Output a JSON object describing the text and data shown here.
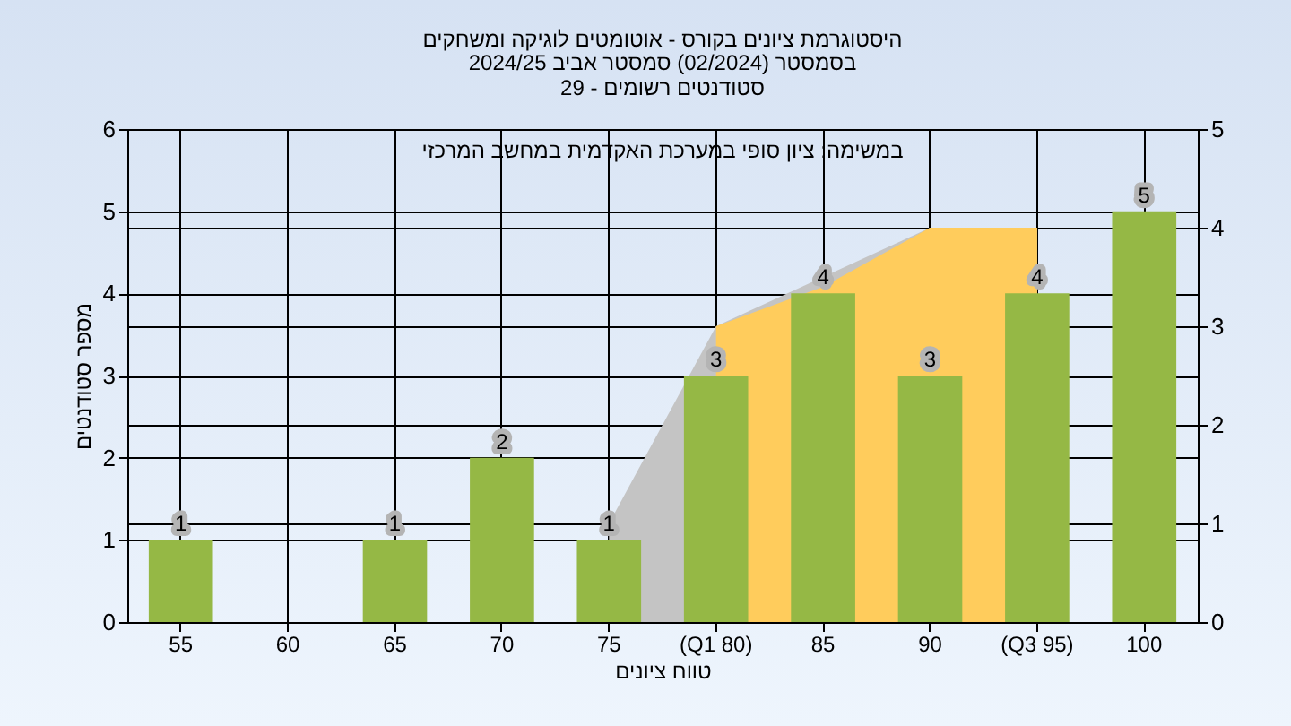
{
  "chart_data": {
    "type": "bar",
    "title": "היסטוגרמת ציונים בקורס - אוטומטים לוגיקה ומשחקים",
    "subtitle": "בסמסטר  (02/2024)  סמסטר אביב 2024/25\nסטודנטים רשומים - 29",
    "xlabel": "טווח ציונים",
    "ylabel": "מספר סטודנטים",
    "annotations": [
      "במשימה: ציון סופי במערכת האקדמית במחשב המרכזי"
    ],
    "categories": [
      "55",
      "60",
      "65",
      "70",
      "75",
      "(Q1 80)",
      "85",
      "90",
      "(Q3 95)",
      "100"
    ],
    "series": [
      {
        "type": "area",
        "axis": "y2",
        "color": "#c4c4c4",
        "values": [
          null,
          null,
          null,
          null,
          1,
          3,
          null,
          4,
          4,
          null
        ]
      },
      {
        "type": "area",
        "axis": "y2",
        "color": "#ffcc5c",
        "values": [
          null,
          null,
          null,
          null,
          null,
          3,
          3.4,
          4,
          4,
          null
        ]
      },
      {
        "color": "#95b845",
        "values": [
          1,
          null,
          1,
          2,
          1,
          3,
          4,
          3,
          4,
          5
        ],
        "value_labels": [
          "1",
          null,
          "1",
          "2",
          "1",
          "3",
          "4",
          "3",
          "4",
          "5"
        ]
      }
    ],
    "ylim": [
      0,
      6
    ],
    "yticks": [
      0,
      1,
      2,
      3,
      4,
      5,
      6
    ],
    "y2lim": [
      0,
      5
    ],
    "y2ticks": [
      0,
      1,
      2,
      3,
      4,
      5
    ],
    "grid": true
  }
}
